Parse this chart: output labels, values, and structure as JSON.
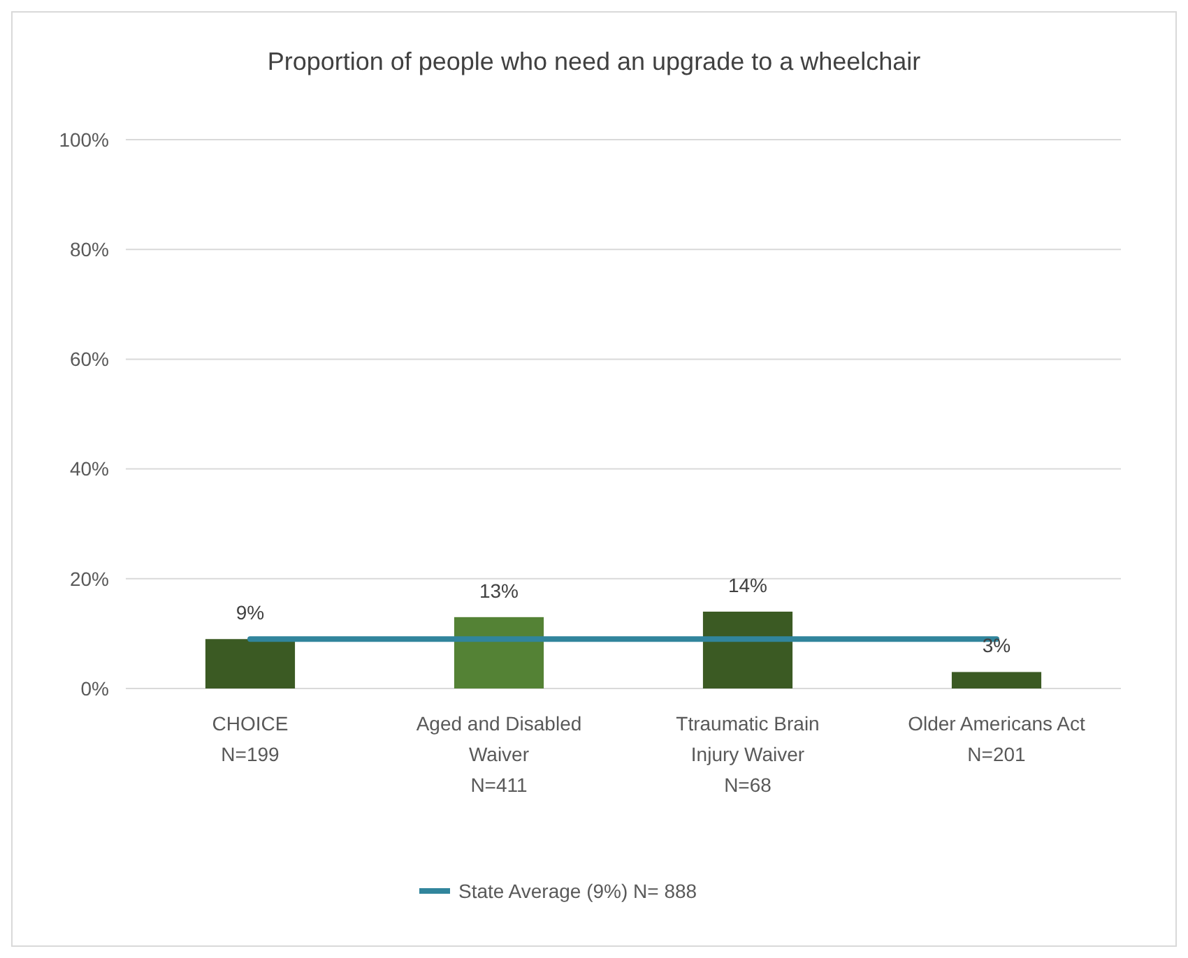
{
  "chart_data": {
    "type": "bar",
    "title": "Proportion of people who need an upgrade to a wheelchair",
    "categories": [
      "CHOICE\nN=199",
      "Aged and Disabled\nWaiver\nN=411",
      "Ttraumatic Brain\nInjury Waiver\nN=68",
      "Older Americans Act\nN=201"
    ],
    "series": [
      {
        "colors": [
          "#3b5a23",
          "#548235",
          "#3b5a23",
          "#3b5a23"
        ],
        "values": [
          9,
          13,
          14,
          3
        ],
        "value_labels": [
          "9%",
          "13%",
          "14%",
          "3%"
        ]
      },
      {
        "type": "line",
        "name": "State Average (9%) N= 888",
        "color": "#31859c",
        "values": [
          9,
          9,
          9,
          9
        ],
        "marker": "none"
      }
    ],
    "ylim": [
      0,
      100
    ],
    "yticks": [
      {
        "value": 0,
        "label": "0%"
      },
      {
        "value": 20,
        "label": "20%"
      },
      {
        "value": 40,
        "label": "40%"
      },
      {
        "value": 60,
        "label": "60%"
      },
      {
        "value": 80,
        "label": "80%"
      },
      {
        "value": 100,
        "label": "100%"
      }
    ],
    "grid": "y",
    "legend": "bottom"
  }
}
